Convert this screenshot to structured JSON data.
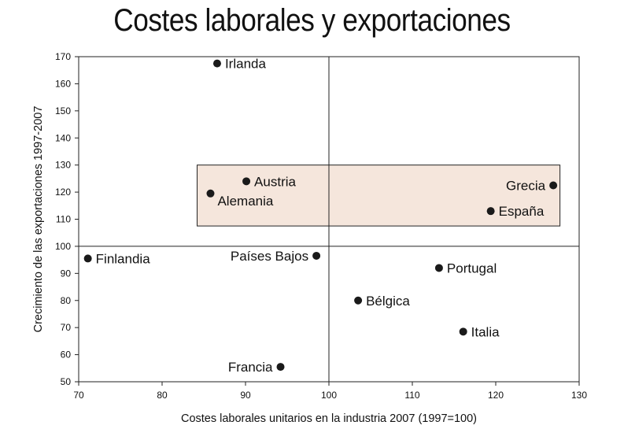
{
  "chart_data": {
    "type": "scatter",
    "title": "Costes laborales y exportaciones",
    "xlabel": "Costes laborales unitarios en la industria 2007 (1997=100)",
    "ylabel": "Crecimiento de las exportaciones 1997-2007",
    "xlim": [
      70,
      130
    ],
    "ylim": [
      50,
      170
    ],
    "x_ticks": [
      70,
      80,
      90,
      100,
      110,
      120,
      130
    ],
    "y_ticks": [
      50,
      60,
      70,
      80,
      90,
      100,
      110,
      120,
      130,
      140,
      150,
      160,
      170
    ],
    "reference_lines": {
      "x": 100,
      "y": 100
    },
    "highlight_box": {
      "x": [
        84.2,
        127.7
      ],
      "y": [
        107.5,
        130
      ],
      "color": "#f5e6dc"
    },
    "grid": false,
    "marker_color": "#1a1a1a",
    "points": [
      {
        "label": "Irlanda",
        "x": 86.6,
        "y": 167.5,
        "label_side": "right"
      },
      {
        "label": "Austria",
        "x": 90.1,
        "y": 124,
        "label_side": "right"
      },
      {
        "label": "Alemania",
        "x": 85.8,
        "y": 119.5,
        "label_side": "right-below"
      },
      {
        "label": "Grecia",
        "x": 126.9,
        "y": 122.5,
        "label_side": "left"
      },
      {
        "label": "España",
        "x": 119.4,
        "y": 113,
        "label_side": "right"
      },
      {
        "label": "Finlandia",
        "x": 71.1,
        "y": 95.5,
        "label_side": "right"
      },
      {
        "label": "Países Bajos",
        "x": 98.5,
        "y": 96.5,
        "label_side": "left"
      },
      {
        "label": "Portugal",
        "x": 113.2,
        "y": 92,
        "label_side": "right"
      },
      {
        "label": "Bélgica",
        "x": 103.5,
        "y": 80,
        "label_side": "right"
      },
      {
        "label": "Italia",
        "x": 116.1,
        "y": 68.5,
        "label_side": "right"
      },
      {
        "label": "Francia",
        "x": 94.2,
        "y": 55.5,
        "label_side": "left"
      }
    ]
  }
}
